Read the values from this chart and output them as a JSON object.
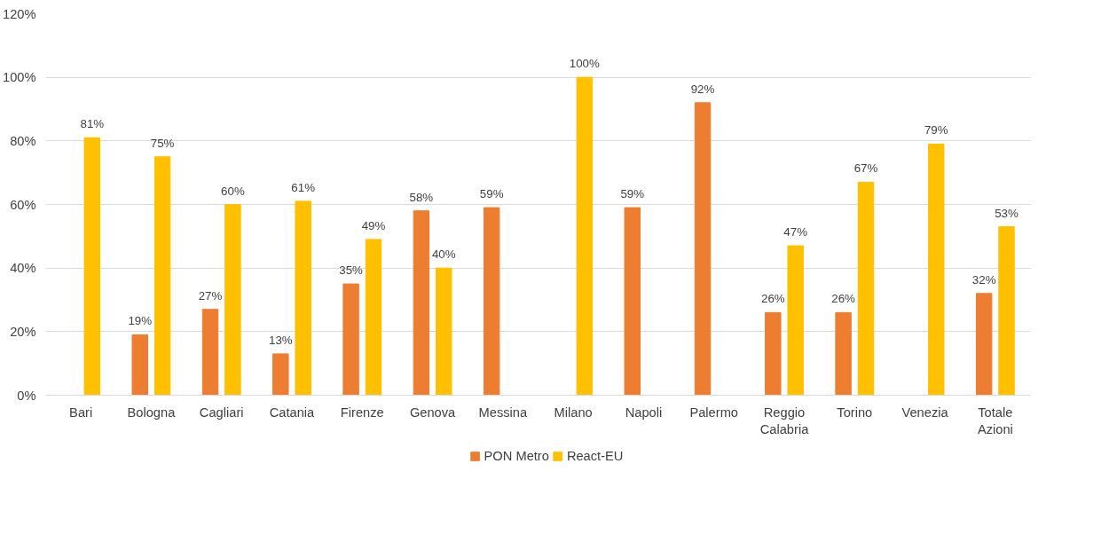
{
  "chart_data": {
    "type": "bar",
    "categories": [
      "Bari",
      "Bologna",
      "Cagliari",
      "Catania",
      "Firenze",
      "Genova",
      "Messina",
      "Milano",
      "Napoli",
      "Palermo",
      "Reggio Calabria",
      "Torino",
      "Venezia",
      "Totale Azioni"
    ],
    "series": [
      {
        "name": "PON Metro",
        "color": "#ed7d31",
        "values": [
          null,
          19,
          27,
          13,
          35,
          58,
          59,
          null,
          59,
          92,
          26,
          26,
          null,
          32
        ],
        "value_labels": [
          null,
          "19%",
          "27%",
          "13%",
          "35%",
          "58%",
          "59%",
          null,
          "59%",
          "92%",
          "26%",
          "26%",
          null,
          "32%"
        ]
      },
      {
        "name": "React-EU",
        "color": "#ffc000",
        "values": [
          81,
          75,
          60,
          61,
          49,
          40,
          null,
          100,
          null,
          null,
          47,
          67,
          79,
          53
        ],
        "value_labels": [
          "81%",
          "75%",
          "60%",
          "61%",
          "49%",
          "40%",
          null,
          "100%",
          null,
          null,
          "47%",
          "67%",
          "79%",
          "53%"
        ]
      }
    ],
    "ylim": [
      0,
      120
    ],
    "yticks": [
      {
        "value": 0,
        "label": "0%"
      },
      {
        "value": 20,
        "label": "20%"
      },
      {
        "value": 40,
        "label": "40%"
      },
      {
        "value": 60,
        "label": "60%"
      },
      {
        "value": 80,
        "label": "80%"
      },
      {
        "value": 100,
        "label": "100%"
      },
      {
        "value": 120,
        "label": "120%"
      }
    ],
    "grid": "y",
    "legend": "bottom"
  }
}
